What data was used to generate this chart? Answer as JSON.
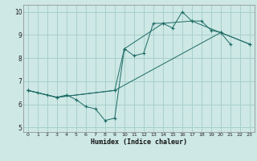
{
  "xlabel": "Humidex (Indice chaleur)",
  "xlim": [
    -0.5,
    23.5
  ],
  "ylim": [
    4.8,
    10.3
  ],
  "yticks": [
    5,
    6,
    7,
    8,
    9,
    10
  ],
  "xticks": [
    0,
    1,
    2,
    3,
    4,
    5,
    6,
    7,
    8,
    9,
    10,
    11,
    12,
    13,
    14,
    15,
    16,
    17,
    18,
    19,
    20,
    21,
    22,
    23
  ],
  "bg_color": "#cde8e5",
  "grid_color": "#a8d0cc",
  "line_color": "#1e6b65",
  "series": [
    {
      "x": [
        0,
        1,
        2,
        3,
        4,
        5,
        6,
        7,
        8,
        9,
        10,
        11,
        12,
        13,
        14,
        15,
        16,
        17,
        18,
        19,
        20,
        21
      ],
      "y": [
        6.6,
        6.5,
        6.4,
        6.3,
        6.4,
        6.2,
        5.9,
        5.8,
        5.3,
        5.4,
        8.4,
        8.1,
        8.2,
        9.5,
        9.5,
        9.3,
        10.0,
        9.6,
        9.6,
        9.2,
        9.1,
        8.6
      ]
    },
    {
      "x": [
        0,
        3,
        9,
        10,
        14,
        17,
        20,
        23
      ],
      "y": [
        6.6,
        6.3,
        6.6,
        8.4,
        9.5,
        9.6,
        9.1,
        8.6
      ]
    },
    {
      "x": [
        0,
        3,
        9,
        20,
        23
      ],
      "y": [
        6.6,
        6.3,
        6.6,
        9.1,
        8.6
      ]
    }
  ]
}
